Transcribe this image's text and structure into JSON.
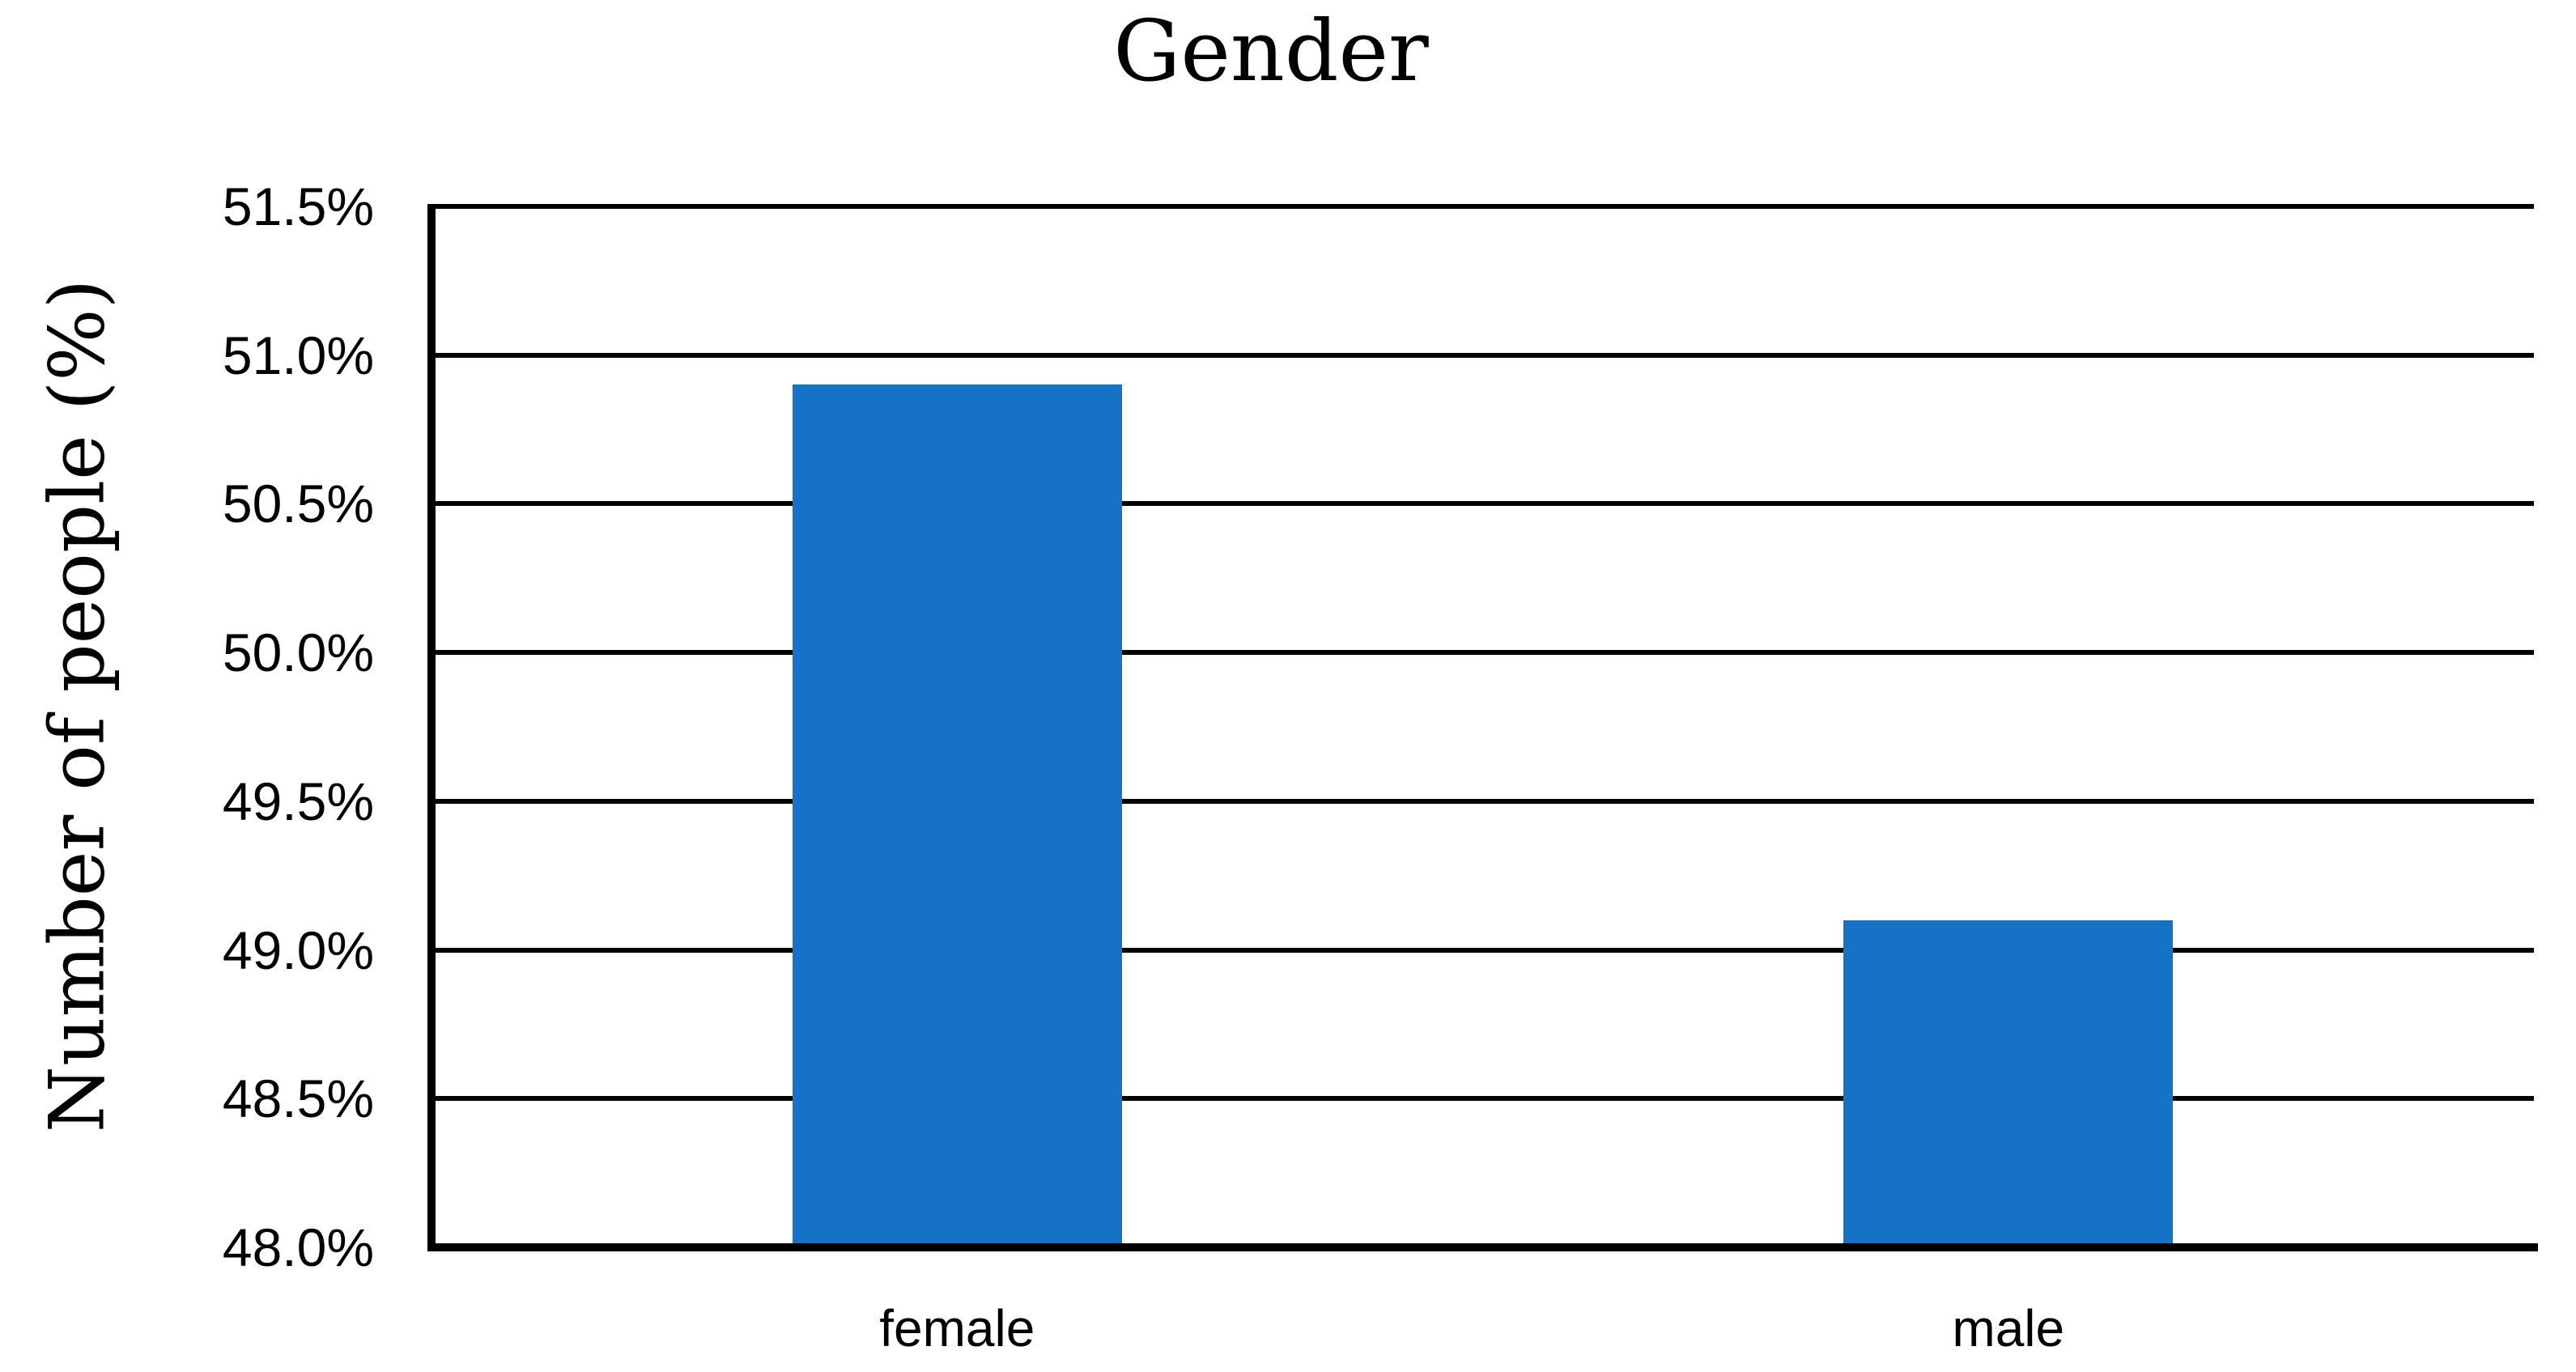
{
  "chart_data": {
    "type": "bar",
    "title": "Gender",
    "ylabel": "Number of people (%)",
    "xlabel": "",
    "categories": [
      "female",
      "male"
    ],
    "values": [
      50.9,
      49.1
    ],
    "value_unit": "%",
    "ylim": [
      48.0,
      51.5
    ],
    "ytick_step": 0.5,
    "ytick_labels": [
      "51.5%",
      "51.0%",
      "50.5%",
      "50.0%",
      "49.5%",
      "49.0%",
      "48.5%",
      "48.0%"
    ],
    "grid": "horizontal",
    "legend": false,
    "colors": {
      "bar": "#1572C6",
      "axis": "#000000",
      "gridline": "#000000",
      "text": "#000000",
      "background": "#FFFFFF"
    }
  }
}
